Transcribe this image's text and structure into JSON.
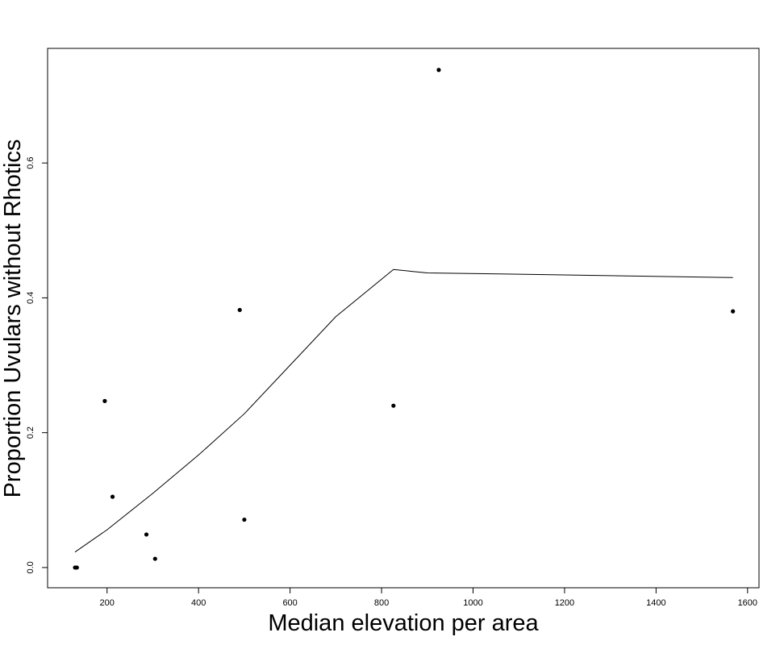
{
  "chart_data": {
    "type": "scatter",
    "title": "",
    "xlabel": "Median elevation per area",
    "ylabel": "Proportion Uvulars without Rhotics",
    "xlim": [
      70,
      1625
    ],
    "ylim": [
      -0.03,
      0.77
    ],
    "x_ticks": [
      200,
      400,
      600,
      800,
      1000,
      1200,
      1400,
      1600
    ],
    "y_ticks": [
      0.0,
      0.2,
      0.4,
      0.6
    ],
    "x_tick_labels": [
      "200",
      "400",
      "600",
      "800",
      "1000",
      "1200",
      "1400",
      "1600"
    ],
    "y_tick_labels": [
      "0.0",
      "0.2",
      "0.4",
      "0.6"
    ],
    "grid": false,
    "legend": "none",
    "points": [
      {
        "x": 130,
        "y": 0.0
      },
      {
        "x": 134,
        "y": 0.0
      },
      {
        "x": 195,
        "y": 0.247
      },
      {
        "x": 212,
        "y": 0.105
      },
      {
        "x": 286,
        "y": 0.049
      },
      {
        "x": 305,
        "y": 0.013
      },
      {
        "x": 490,
        "y": 0.382
      },
      {
        "x": 500,
        "y": 0.071
      },
      {
        "x": 826,
        "y": 0.24
      },
      {
        "x": 925,
        "y": 0.738
      },
      {
        "x": 1568,
        "y": 0.38
      }
    ],
    "smoother": [
      {
        "x": 130,
        "y": 0.023
      },
      {
        "x": 200,
        "y": 0.056
      },
      {
        "x": 300,
        "y": 0.11
      },
      {
        "x": 400,
        "y": 0.167
      },
      {
        "x": 500,
        "y": 0.228
      },
      {
        "x": 600,
        "y": 0.3
      },
      {
        "x": 700,
        "y": 0.372
      },
      {
        "x": 826,
        "y": 0.442
      },
      {
        "x": 900,
        "y": 0.437
      },
      {
        "x": 1200,
        "y": 0.434
      },
      {
        "x": 1568,
        "y": 0.43
      }
    ]
  }
}
